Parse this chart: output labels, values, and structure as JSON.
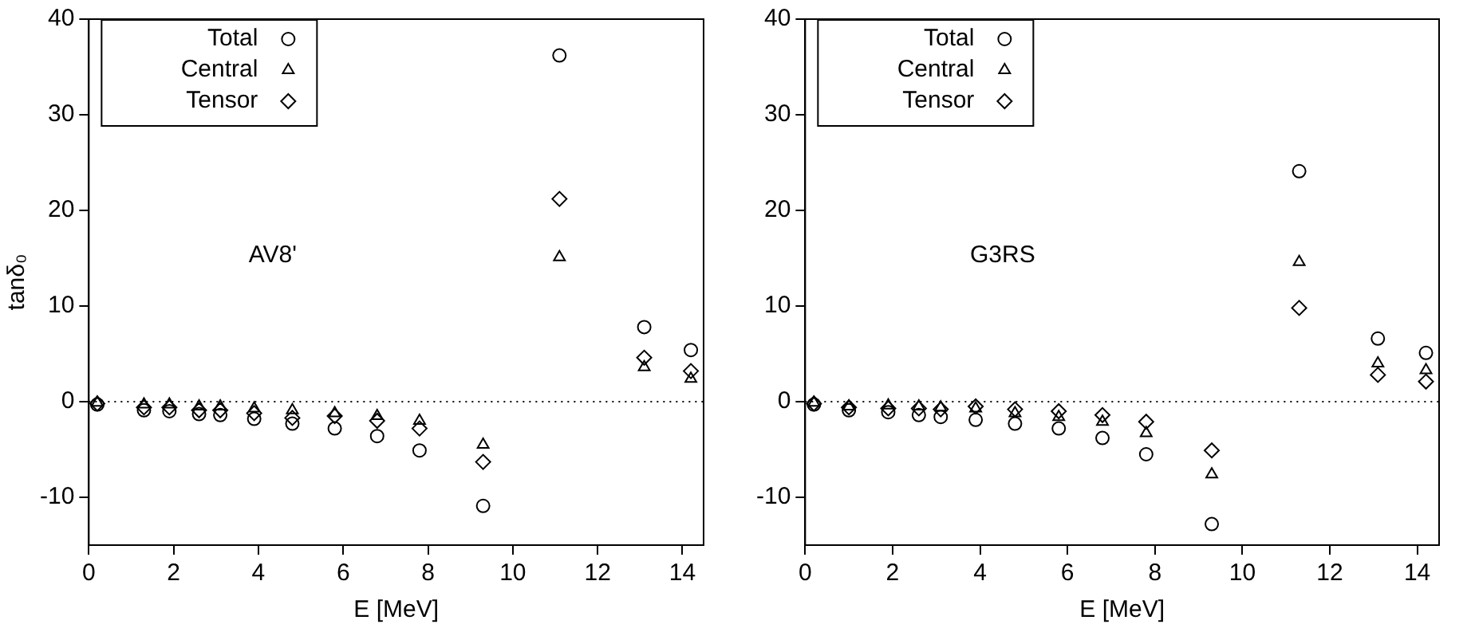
{
  "chart_data": [
    {
      "type": "scatter",
      "xlabel": "E [MeV]",
      "ylabel": "tanδ₀",
      "annotations": [
        "AV8'"
      ],
      "xlim": [
        0,
        14.5
      ],
      "ylim": [
        -15,
        40
      ],
      "xticks": [
        0,
        2,
        4,
        6,
        8,
        10,
        12,
        14
      ],
      "yticks": [
        -10,
        0,
        10,
        20,
        30,
        40
      ],
      "grid": false,
      "legend": "top left",
      "ref_lines": [
        {
          "axis": "y",
          "value": 0,
          "color": "#000000",
          "line_style": "dotted"
        }
      ],
      "x": [
        0.2,
        1.3,
        1.9,
        2.6,
        3.1,
        3.9,
        4.8,
        5.8,
        6.8,
        7.8,
        9.3,
        11.1,
        13.1,
        14.2
      ],
      "series": [
        {
          "name": "Total",
          "color": "#000000",
          "marker": "circle",
          "values": [
            -0.3,
            -0.9,
            -1.0,
            -1.3,
            -1.4,
            -1.8,
            -2.3,
            -2.8,
            -3.6,
            -5.1,
            -10.9,
            36.2,
            7.8,
            5.4
          ]
        },
        {
          "name": "Central",
          "color": "#000000",
          "marker": "triangle",
          "values": [
            -0.1,
            -0.3,
            -0.3,
            -0.5,
            -0.5,
            -0.7,
            -0.9,
            -1.2,
            -1.5,
            -2.0,
            -4.5,
            15.1,
            3.6,
            2.4
          ]
        },
        {
          "name": "Tensor",
          "color": "#000000",
          "marker": "diamond",
          "values": [
            -0.2,
            -0.6,
            -0.6,
            -0.9,
            -0.9,
            -1.2,
            -1.7,
            -1.5,
            -2.0,
            -2.8,
            -6.3,
            21.2,
            4.6,
            3.2
          ]
        }
      ]
    },
    {
      "type": "scatter",
      "xlabel": "E [MeV]",
      "annotations": [
        "G3RS"
      ],
      "xlim": [
        0,
        14.5
      ],
      "ylim": [
        -15,
        40
      ],
      "xticks": [
        0,
        2,
        4,
        6,
        8,
        10,
        12,
        14
      ],
      "yticks": [
        -10,
        0,
        10,
        20,
        30,
        40
      ],
      "grid": false,
      "legend": "top left",
      "ref_lines": [
        {
          "axis": "y",
          "value": 0,
          "color": "#000000",
          "line_style": "dotted"
        }
      ],
      "x": [
        0.2,
        1.0,
        1.9,
        2.6,
        3.1,
        3.9,
        4.8,
        5.8,
        6.8,
        7.8,
        9.3,
        11.3,
        13.1,
        14.2
      ],
      "series": [
        {
          "name": "Total",
          "color": "#000000",
          "marker": "circle",
          "values": [
            -0.3,
            -0.9,
            -1.1,
            -1.4,
            -1.6,
            -1.9,
            -2.3,
            -2.8,
            -3.8,
            -5.5,
            -12.8,
            24.1,
            6.6,
            5.1
          ]
        },
        {
          "name": "Central",
          "color": "#000000",
          "marker": "triangle",
          "values": [
            -0.1,
            -0.5,
            -0.4,
            -0.5,
            -0.6,
            -0.7,
            -1.2,
            -1.6,
            -2.1,
            -3.3,
            -7.6,
            14.6,
            4.0,
            3.3
          ]
        },
        {
          "name": "Tensor",
          "color": "#000000",
          "marker": "diamond",
          "values": [
            -0.2,
            -0.6,
            -0.7,
            -0.7,
            -0.8,
            -0.5,
            -0.8,
            -1.0,
            -1.4,
            -2.1,
            -5.1,
            9.8,
            2.8,
            2.1
          ]
        }
      ]
    }
  ]
}
